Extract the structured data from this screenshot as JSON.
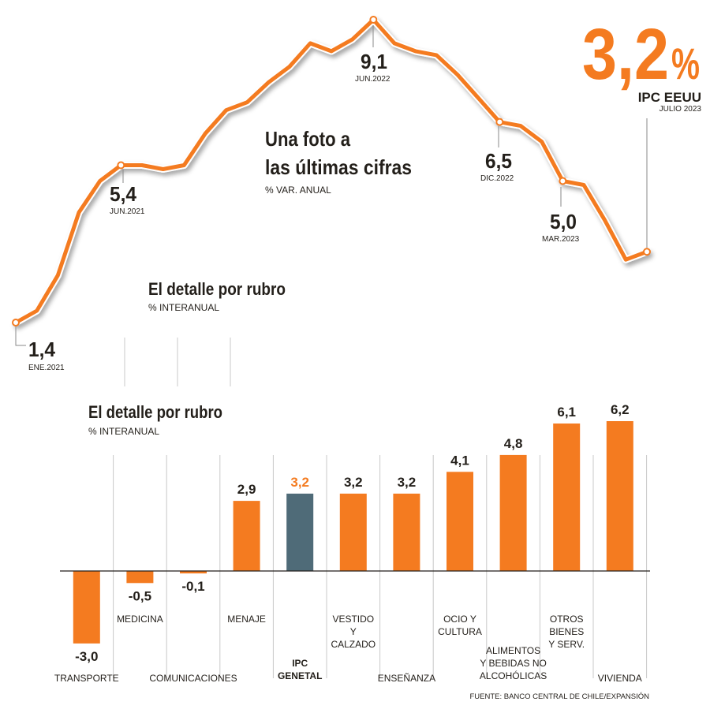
{
  "headline": {
    "value": "3,2",
    "percent": "%",
    "label": "IPC EEUU",
    "date": "JULIO 2023",
    "color": "#f47b20"
  },
  "line_section": {
    "title_line1": "Una foto a",
    "title_line2": "las últimas cifras",
    "subtitle": "% VAR. ANUAL",
    "ghost_title": "El detalle por rubro",
    "ghost_subtitle": "% INTERANUAL"
  },
  "bar_section": {
    "title": "El detalle por rubro",
    "subtitle": "% INTERANUAL",
    "source": "FUENTE: BANCO CENTRAL DE CHILE/EXPANSIÓN"
  },
  "colors": {
    "orange": "#f47b20",
    "highlight": "#4f6b78",
    "text": "#231f1a",
    "grid": "#c9c9c9"
  },
  "chart_data": [
    {
      "type": "line",
      "title": "Una foto a las últimas cifras",
      "ylabel": "% VAR. ANUAL",
      "x_start": "ENE.2021",
      "x_end": "JULIO 2023",
      "values": [
        1.4,
        1.7,
        2.6,
        4.2,
        5.0,
        5.4,
        5.4,
        5.3,
        5.4,
        6.2,
        6.8,
        7.0,
        7.5,
        7.9,
        8.5,
        8.3,
        8.6,
        9.1,
        8.5,
        8.3,
        8.2,
        7.7,
        7.1,
        6.5,
        6.4,
        6.0,
        5.0,
        4.9,
        4.0,
        3.0,
        3.2
      ],
      "ylim": [
        0,
        10
      ],
      "annotations": [
        {
          "index": 0,
          "value": "1,4",
          "date": "ENE.2021"
        },
        {
          "index": 5,
          "value": "5,4",
          "date": "JUN.2021"
        },
        {
          "index": 17,
          "value": "9,1",
          "date": "JUN.2022"
        },
        {
          "index": 23,
          "value": "6,5",
          "date": "DIC.2022"
        },
        {
          "index": 26,
          "value": "5,0",
          "date": "MAR.2023"
        }
      ]
    },
    {
      "type": "bar",
      "title": "El detalle por rubro",
      "ylabel": "% INTERANUAL",
      "categories": [
        {
          "label": [
            "TRANSPORTE"
          ],
          "value": -3.0,
          "value_label": "-3,0",
          "highlight": false
        },
        {
          "label": [
            "MEDICINA"
          ],
          "value": -0.5,
          "value_label": "-0,5",
          "highlight": false
        },
        {
          "label": [
            "COMUNICACIONES"
          ],
          "value": -0.1,
          "value_label": "-0,1",
          "highlight": false
        },
        {
          "label": [
            "MENAJE"
          ],
          "value": 2.9,
          "value_label": "2,9",
          "highlight": false
        },
        {
          "label": [
            "IPC",
            "GENETAL"
          ],
          "value": 3.2,
          "value_label": "3,2",
          "highlight": true
        },
        {
          "label": [
            "VESTIDO",
            "Y",
            "CALZADO"
          ],
          "value": 3.2,
          "value_label": "3,2",
          "highlight": false
        },
        {
          "label": [
            "ENSEÑANZA"
          ],
          "value": 3.2,
          "value_label": "3,2",
          "highlight": false
        },
        {
          "label": [
            "OCIO Y",
            "CULTURA"
          ],
          "value": 4.1,
          "value_label": "4,1",
          "highlight": false
        },
        {
          "label": [
            "ALIMENTOS",
            "Y BEBIDAS NO",
            "ALCOHÓLICAS"
          ],
          "value": 4.8,
          "value_label": "4,8",
          "highlight": false
        },
        {
          "label": [
            "OTROS",
            "BIENES",
            "Y SERV."
          ],
          "value": 6.1,
          "value_label": "6,1",
          "highlight": false
        },
        {
          "label": [
            "VIVIENDA"
          ],
          "value": 6.2,
          "value_label": "6,2",
          "highlight": false
        }
      ]
    }
  ]
}
